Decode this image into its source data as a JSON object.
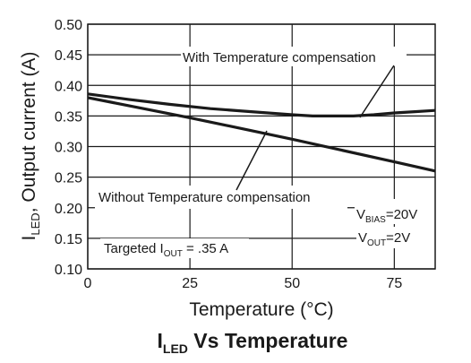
{
  "chart_data": {
    "type": "line",
    "title": {
      "main": "I",
      "sub": "LED",
      "rest": " Vs Temperature"
    },
    "xlabel": "Temperature (°C)",
    "ylabel": {
      "main": "I",
      "sub": "LED",
      "rest": ", Output current (A)"
    },
    "xlim": [
      0,
      85
    ],
    "ylim": [
      0.1,
      0.5
    ],
    "xticks": [
      "0",
      "25",
      "50",
      "75"
    ],
    "xtick_values": [
      0,
      25,
      50,
      75
    ],
    "yticks": [
      "0.10",
      "0.15",
      "0.20",
      "0.25",
      "0.30",
      "0.35",
      "0.40",
      "0.45",
      "0.50"
    ],
    "ytick_values": [
      0.1,
      0.15,
      0.2,
      0.25,
      0.3,
      0.35,
      0.4,
      0.45,
      0.5
    ],
    "grid": true,
    "series": [
      {
        "name": "With Temperature compensation",
        "x": [
          0,
          10,
          20,
          30,
          40,
          50,
          55,
          60,
          65,
          70,
          75,
          80,
          85
        ],
        "y": [
          0.386,
          0.377,
          0.369,
          0.362,
          0.357,
          0.352,
          0.35,
          0.35,
          0.35,
          0.352,
          0.355,
          0.357,
          0.359
        ]
      },
      {
        "name": "Without Temperature compensation",
        "x": [
          0,
          25,
          50,
          75,
          85
        ],
        "y": [
          0.38,
          0.347,
          0.312,
          0.275,
          0.26
        ]
      }
    ],
    "annotations": {
      "vbias": {
        "main": "V",
        "sub": "BIAS",
        "rest": "=20V"
      },
      "vout": {
        "main": "V",
        "sub": "OUT",
        "rest": "=2V"
      },
      "target": {
        "main": "Targeted I",
        "sub": "OUT",
        "rest": " = .35 A"
      }
    },
    "colors": {
      "line": "#1a1a1a",
      "grid": "#1a1a1a",
      "background": "#ffffff"
    }
  }
}
